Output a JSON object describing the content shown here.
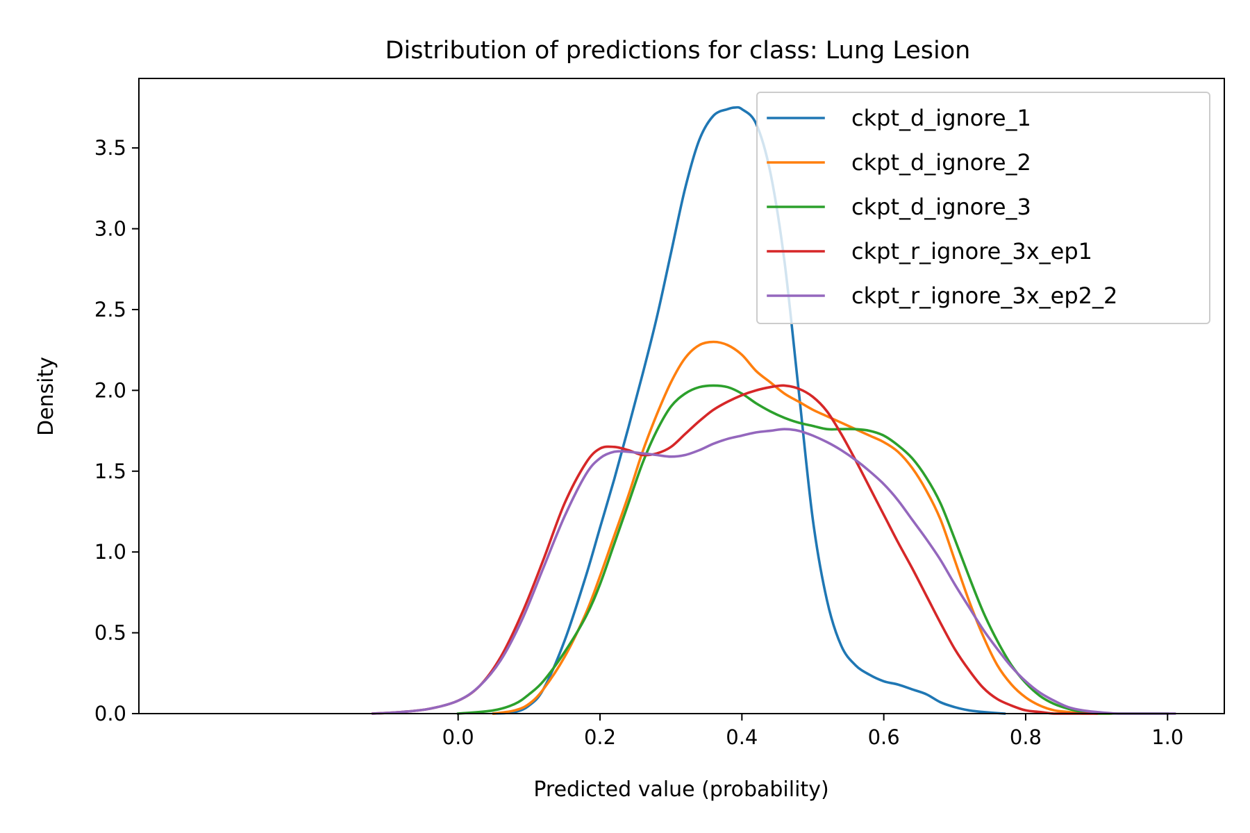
{
  "chart_data": {
    "type": "line",
    "title": "Distribution of predictions for class: Lung Lesion",
    "xlabel": "Predicted value (probability)",
    "ylabel": "Density",
    "xlim": [
      -0.45,
      1.08
    ],
    "ylim": [
      0.0,
      3.93
    ],
    "xticks": [
      "0.0",
      "0.2",
      "0.4",
      "0.6",
      "0.8",
      "1.0"
    ],
    "xtick_values": [
      0.0,
      0.2,
      0.4,
      0.6,
      0.8,
      1.0
    ],
    "yticks": [
      "0.0",
      "0.5",
      "1.0",
      "1.5",
      "2.0",
      "2.5",
      "3.0",
      "3.5"
    ],
    "ytick_values": [
      0.0,
      0.5,
      1.0,
      1.5,
      2.0,
      2.5,
      3.0,
      3.5
    ],
    "grid": false,
    "legend_position": "top-right",
    "series": [
      {
        "name": "ckpt_d_ignore_1",
        "color": "#1f77b4",
        "x": [
          0.05,
          0.08,
          0.1,
          0.12,
          0.15,
          0.18,
          0.2,
          0.22,
          0.24,
          0.26,
          0.28,
          0.3,
          0.32,
          0.34,
          0.36,
          0.38,
          0.39,
          0.4,
          0.42,
          0.44,
          0.46,
          0.48,
          0.5,
          0.52,
          0.54,
          0.56,
          0.58,
          0.6,
          0.62,
          0.64,
          0.66,
          0.68,
          0.7,
          0.72,
          0.74,
          0.77
        ],
        "y": [
          0.0,
          0.01,
          0.05,
          0.15,
          0.45,
          0.85,
          1.15,
          1.45,
          1.77,
          2.1,
          2.45,
          2.85,
          3.25,
          3.55,
          3.7,
          3.74,
          3.75,
          3.74,
          3.65,
          3.35,
          2.8,
          2.0,
          1.2,
          0.7,
          0.42,
          0.3,
          0.24,
          0.2,
          0.18,
          0.15,
          0.12,
          0.07,
          0.04,
          0.02,
          0.01,
          0.0
        ]
      },
      {
        "name": "ckpt_d_ignore_2",
        "color": "#ff7f0e",
        "x": [
          0.05,
          0.08,
          0.1,
          0.12,
          0.15,
          0.18,
          0.2,
          0.22,
          0.24,
          0.26,
          0.28,
          0.3,
          0.32,
          0.34,
          0.36,
          0.38,
          0.4,
          0.42,
          0.44,
          0.46,
          0.48,
          0.5,
          0.52,
          0.54,
          0.56,
          0.58,
          0.6,
          0.62,
          0.64,
          0.66,
          0.68,
          0.7,
          0.72,
          0.74,
          0.76,
          0.78,
          0.8,
          0.82,
          0.84,
          0.86,
          0.88,
          0.9,
          0.92
        ],
        "y": [
          0.0,
          0.02,
          0.06,
          0.15,
          0.35,
          0.62,
          0.85,
          1.1,
          1.35,
          1.62,
          1.85,
          2.05,
          2.2,
          2.28,
          2.3,
          2.28,
          2.22,
          2.12,
          2.05,
          1.98,
          1.93,
          1.88,
          1.84,
          1.8,
          1.76,
          1.72,
          1.68,
          1.62,
          1.52,
          1.38,
          1.2,
          0.95,
          0.7,
          0.48,
          0.3,
          0.18,
          0.1,
          0.05,
          0.02,
          0.01,
          0.0,
          0.0,
          0.0
        ]
      },
      {
        "name": "ckpt_d_ignore_3",
        "color": "#2ca02c",
        "x": [
          0.0,
          0.05,
          0.08,
          0.1,
          0.12,
          0.15,
          0.18,
          0.2,
          0.22,
          0.24,
          0.26,
          0.28,
          0.3,
          0.32,
          0.34,
          0.36,
          0.38,
          0.4,
          0.42,
          0.44,
          0.46,
          0.48,
          0.5,
          0.52,
          0.54,
          0.56,
          0.58,
          0.6,
          0.62,
          0.64,
          0.66,
          0.68,
          0.7,
          0.72,
          0.74,
          0.76,
          0.78,
          0.8,
          0.82,
          0.84,
          0.86,
          0.88,
          0.9,
          0.93,
          0.96,
          1.0
        ],
        "y": [
          0.0,
          0.02,
          0.06,
          0.12,
          0.2,
          0.38,
          0.6,
          0.8,
          1.05,
          1.3,
          1.55,
          1.75,
          1.9,
          1.98,
          2.02,
          2.03,
          2.02,
          1.98,
          1.92,
          1.87,
          1.83,
          1.8,
          1.78,
          1.76,
          1.76,
          1.76,
          1.75,
          1.72,
          1.66,
          1.58,
          1.46,
          1.3,
          1.08,
          0.85,
          0.63,
          0.45,
          0.3,
          0.19,
          0.11,
          0.06,
          0.03,
          0.01,
          0.0,
          0.0,
          0.0,
          0.0
        ]
      },
      {
        "name": "ckpt_r_ignore_3x_ep1",
        "color": "#d62728",
        "x": [
          -0.12,
          -0.08,
          -0.04,
          0.0,
          0.03,
          0.06,
          0.09,
          0.12,
          0.15,
          0.18,
          0.2,
          0.22,
          0.24,
          0.26,
          0.28,
          0.3,
          0.32,
          0.34,
          0.36,
          0.38,
          0.4,
          0.42,
          0.44,
          0.46,
          0.48,
          0.5,
          0.52,
          0.54,
          0.56,
          0.58,
          0.6,
          0.62,
          0.64,
          0.66,
          0.68,
          0.7,
          0.72,
          0.74,
          0.76,
          0.78,
          0.8,
          0.82,
          0.84,
          0.86,
          0.88,
          0.9
        ],
        "y": [
          0.0,
          0.01,
          0.03,
          0.08,
          0.17,
          0.35,
          0.62,
          0.95,
          1.3,
          1.55,
          1.64,
          1.65,
          1.63,
          1.6,
          1.61,
          1.65,
          1.73,
          1.81,
          1.88,
          1.93,
          1.97,
          2.0,
          2.02,
          2.03,
          2.01,
          1.96,
          1.87,
          1.73,
          1.57,
          1.4,
          1.23,
          1.06,
          0.9,
          0.73,
          0.56,
          0.4,
          0.27,
          0.16,
          0.09,
          0.05,
          0.02,
          0.01,
          0.0,
          0.0,
          0.0,
          0.0
        ]
      },
      {
        "name": "ckpt_r_ignore_3x_ep2_2",
        "color": "#9467bd",
        "x": [
          -0.12,
          -0.08,
          -0.04,
          0.0,
          0.03,
          0.06,
          0.09,
          0.12,
          0.15,
          0.18,
          0.2,
          0.22,
          0.24,
          0.26,
          0.28,
          0.3,
          0.32,
          0.34,
          0.36,
          0.38,
          0.4,
          0.42,
          0.44,
          0.46,
          0.48,
          0.5,
          0.52,
          0.54,
          0.56,
          0.58,
          0.6,
          0.62,
          0.64,
          0.66,
          0.68,
          0.7,
          0.72,
          0.74,
          0.76,
          0.78,
          0.8,
          0.82,
          0.84,
          0.86,
          0.88,
          0.9,
          0.93,
          0.96,
          1.0,
          1.01
        ],
        "y": [
          0.0,
          0.01,
          0.03,
          0.08,
          0.17,
          0.33,
          0.58,
          0.9,
          1.22,
          1.48,
          1.58,
          1.62,
          1.62,
          1.61,
          1.6,
          1.59,
          1.6,
          1.63,
          1.67,
          1.7,
          1.72,
          1.74,
          1.75,
          1.76,
          1.75,
          1.72,
          1.68,
          1.63,
          1.57,
          1.5,
          1.42,
          1.32,
          1.2,
          1.08,
          0.95,
          0.8,
          0.66,
          0.52,
          0.4,
          0.29,
          0.2,
          0.13,
          0.08,
          0.04,
          0.02,
          0.01,
          0.0,
          0.0,
          0.0,
          0.0
        ]
      }
    ]
  }
}
